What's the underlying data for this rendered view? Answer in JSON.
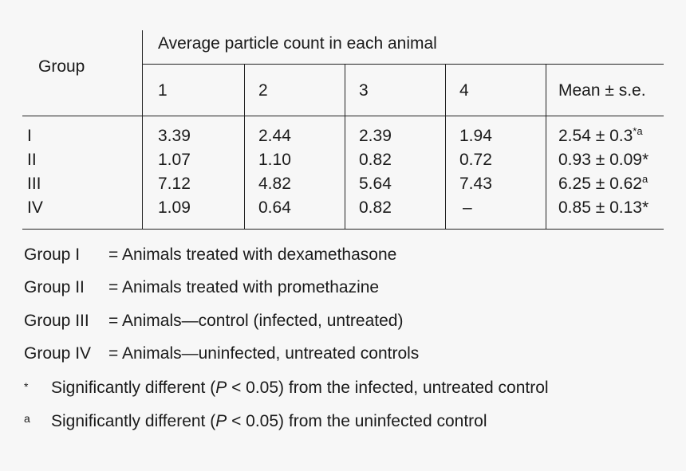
{
  "table": {
    "group_header": "Group",
    "average_header": "Average particle count in each animal",
    "columns": [
      "1",
      "2",
      "3",
      "4",
      "Mean ± s.e."
    ],
    "rows": [
      {
        "group": "I",
        "values": [
          "3.39",
          "2.44",
          "2.39",
          "1.94"
        ],
        "mean": "2.54 ± 0.3",
        "mark": "*a"
      },
      {
        "group": "II",
        "values": [
          "1.07",
          "1.10",
          "0.82",
          "0.72"
        ],
        "mean": "0.93 ± 0.09",
        "mark": "*"
      },
      {
        "group": "III",
        "values": [
          "7.12",
          "4.82",
          "5.64",
          "7.43"
        ],
        "mean": "6.25 ± 0.62",
        "mark": "a"
      },
      {
        "group": "IV",
        "values": [
          "1.09",
          "0.64",
          "0.82",
          "–"
        ],
        "mean": "0.85 ± 0.13",
        "mark": "*"
      }
    ]
  },
  "legend": [
    {
      "key": "Group I",
      "desc": "= Animals treated with dexamethasone"
    },
    {
      "key": "Group II",
      "desc": "= Animals treated with promethazine"
    },
    {
      "key": "Group III",
      "desc": "= Animals—control (infected, untreated)"
    },
    {
      "key": "Group IV",
      "desc": "= Animals—uninfected, untreated controls"
    }
  ],
  "footnotes": [
    {
      "mark": "*",
      "pre": "Significantly different (",
      "p": "P",
      "post": " < 0.05) from the infected, untreated control"
    },
    {
      "mark": "a",
      "pre": "Significantly different (",
      "p": "P",
      "post": " < 0.05) from the uninfected control"
    }
  ]
}
